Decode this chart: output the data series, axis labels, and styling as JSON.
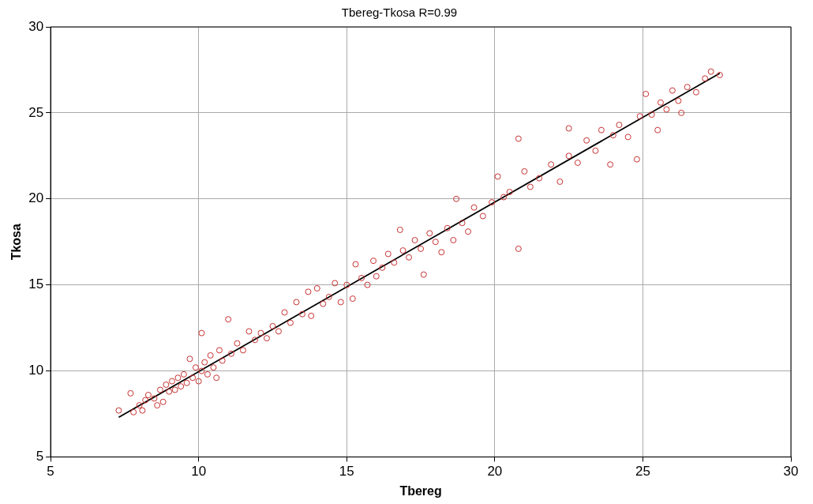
{
  "chart_data": {
    "type": "scatter",
    "title": "Tbereg-Tkosa R=0.99",
    "xlabel": "Tbereg",
    "ylabel": "Tkosa",
    "xlim": [
      5,
      30
    ],
    "xticks": [
      5,
      10,
      15,
      20,
      25,
      30
    ],
    "ylim": [
      5,
      30
    ],
    "yticks": [
      5,
      10,
      15,
      20,
      25,
      30
    ],
    "grid": true,
    "marker": "circle",
    "series": [
      {
        "type": "scatter",
        "color": "#c83232",
        "x": [
          7.3,
          7.7,
          7.8,
          8.0,
          8.1,
          8.2,
          8.3,
          8.5,
          8.6,
          8.7,
          8.8,
          8.9,
          9.0,
          9.1,
          9.2,
          9.3,
          9.4,
          9.5,
          9.6,
          9.7,
          9.8,
          9.9,
          10.0,
          10.1,
          10.1,
          10.2,
          10.3,
          10.4,
          10.5,
          10.6,
          10.7,
          10.8,
          11.0,
          11.1,
          11.3,
          11.5,
          11.7,
          11.9,
          12.1,
          12.3,
          12.5,
          12.7,
          12.9,
          13.1,
          13.3,
          13.5,
          13.7,
          13.8,
          14.0,
          14.2,
          14.4,
          14.6,
          14.8,
          15.0,
          15.2,
          15.3,
          15.5,
          15.7,
          15.9,
          16.0,
          16.2,
          16.4,
          16.6,
          16.8,
          16.9,
          17.1,
          17.3,
          17.5,
          17.6,
          17.8,
          18.0,
          18.2,
          18.4,
          18.6,
          18.7,
          18.9,
          19.1,
          19.3,
          19.6,
          19.9,
          20.1,
          20.3,
          20.5,
          20.8,
          20.8,
          21.0,
          21.2,
          21.5,
          21.9,
          22.2,
          22.5,
          22.5,
          22.8,
          23.1,
          23.4,
          23.6,
          23.9,
          24.0,
          24.2,
          24.5,
          24.8,
          24.9,
          25.1,
          25.3,
          25.5,
          25.6,
          25.8,
          26.0,
          26.2,
          26.3,
          26.5,
          26.8,
          27.1,
          27.3,
          27.6
        ],
        "values": [
          7.7,
          8.7,
          7.6,
          8.0,
          7.7,
          8.3,
          8.6,
          8.4,
          8.0,
          8.9,
          8.2,
          9.2,
          8.8,
          9.4,
          8.9,
          9.6,
          9.1,
          9.8,
          9.3,
          10.7,
          9.6,
          10.2,
          9.4,
          12.2,
          10.0,
          10.5,
          9.8,
          10.9,
          10.2,
          9.6,
          11.2,
          10.6,
          13.0,
          11.0,
          11.6,
          11.2,
          12.3,
          11.8,
          12.2,
          11.9,
          12.6,
          12.3,
          13.4,
          12.8,
          14.0,
          13.3,
          14.6,
          13.2,
          14.8,
          13.9,
          14.3,
          15.1,
          14.0,
          15.0,
          14.2,
          16.2,
          15.4,
          15.0,
          16.4,
          15.5,
          16.0,
          16.8,
          16.3,
          18.2,
          17.0,
          16.6,
          17.6,
          17.1,
          15.6,
          18.0,
          17.5,
          16.9,
          18.3,
          17.6,
          20.0,
          18.6,
          18.1,
          19.5,
          19.0,
          19.8,
          21.3,
          20.1,
          20.4,
          17.1,
          23.5,
          21.6,
          20.7,
          21.2,
          22.0,
          21.0,
          22.5,
          24.1,
          22.1,
          23.4,
          22.8,
          24.0,
          22.0,
          23.7,
          24.3,
          23.6,
          22.3,
          24.8,
          26.1,
          24.9,
          24.0,
          25.6,
          25.2,
          26.3,
          25.7,
          25.0,
          26.5,
          26.2,
          27.0,
          27.4,
          27.2
        ]
      },
      {
        "type": "line",
        "color": "#000000",
        "marker": "none",
        "line_style": "solid",
        "x": [
          7.3,
          27.6
        ],
        "values": [
          7.3,
          27.3
        ]
      }
    ]
  }
}
